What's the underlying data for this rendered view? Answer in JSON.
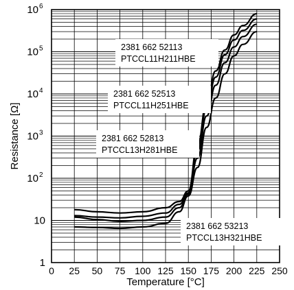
{
  "chart_data": {
    "type": "line",
    "xlabel": "Temperature [°C]",
    "ylabel": "Resistance [Ω]",
    "xlim": [
      0,
      250
    ],
    "ylim": [
      1,
      1000000
    ],
    "yscale": "log",
    "grid": true,
    "x_ticks": [
      "0",
      "25",
      "50",
      "75",
      "100",
      "125",
      "150",
      "175",
      "200",
      "225",
      "250"
    ],
    "y_tick_labels": [
      {
        "value": 1,
        "base": "1",
        "exp": ""
      },
      {
        "value": 10,
        "base": "10",
        "exp": ""
      },
      {
        "value": 100,
        "base": "10",
        "exp": "2"
      },
      {
        "value": 1000,
        "base": "10",
        "exp": "3"
      },
      {
        "value": 10000,
        "base": "10",
        "exp": "4"
      },
      {
        "value": 100000,
        "base": "10",
        "exp": "5"
      },
      {
        "value": 1000000,
        "base": "10",
        "exp": "6"
      }
    ],
    "series": [
      {
        "x": [
          25,
          50,
          75,
          100,
          125,
          140,
          150,
          160,
          170,
          180,
          190,
          200,
          210,
          225
        ],
        "values": [
          18,
          16,
          15,
          16,
          20,
          28,
          50,
          600,
          6000,
          35000,
          110000,
          250000,
          420000,
          800000
        ]
      },
      {
        "x": [
          25,
          50,
          75,
          100,
          125,
          140,
          150,
          160,
          170,
          180,
          190,
          200,
          210,
          225
        ],
        "values": [
          13,
          12,
          11.5,
          12.5,
          15,
          24,
          45,
          450,
          4500,
          25000,
          85000,
          190000,
          320000,
          600000
        ]
      },
      {
        "x": [
          25,
          50,
          75,
          100,
          125,
          140,
          150,
          160,
          170,
          180,
          190,
          200,
          210,
          225
        ],
        "values": [
          12,
          10.5,
          9.5,
          10,
          12,
          20,
          42,
          300,
          3000,
          16000,
          55000,
          130000,
          230000,
          450000
        ]
      },
      {
        "x": [
          25,
          50,
          75,
          100,
          125,
          140,
          150,
          160,
          170,
          180,
          190,
          200,
          210,
          225
        ],
        "values": [
          7,
          6.8,
          6.5,
          7,
          8.5,
          16,
          38,
          180,
          1600,
          8000,
          30000,
          80000,
          150000,
          300000
        ]
      }
    ],
    "annotations": [
      {
        "line1": "2381 662 52113",
        "line2": "PTCCL11H211HBE"
      },
      {
        "line1": "2381 662 52513",
        "line2": "PTCCL11H251HBE"
      },
      {
        "line1": "2381 662 52813",
        "line2": "PTCCL13H281HBE"
      },
      {
        "line1": "2381 662 53213",
        "line2": "PTCCL13H321HBE"
      }
    ]
  }
}
